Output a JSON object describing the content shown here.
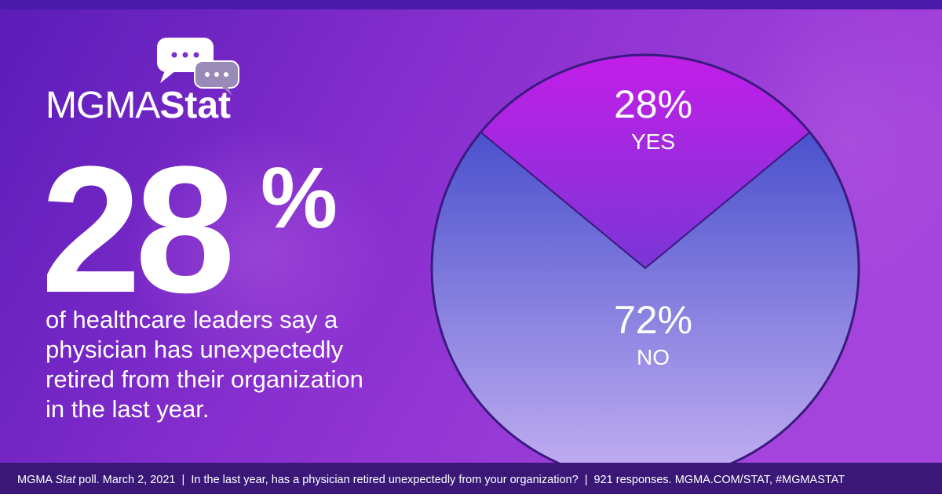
{
  "logo": {
    "light": "MGMA",
    "bold": "Stat"
  },
  "headline": {
    "number": "28",
    "symbol": "%"
  },
  "description": [
    "of healthcare leaders say a",
    "physician has unexpectedly",
    "retired from their organization",
    "in the last year."
  ],
  "footer": [
    "MGMA ",
    "Stat",
    " poll. March 2, 2021  |  In the last year, has a physician retired unexpectedly from your organization?  |  921 responses. MGMA.COM/STAT, #MGMASTAT"
  ],
  "chart_data": {
    "type": "pie",
    "categories": [
      "YES",
      "NO"
    ],
    "values": [
      28,
      72
    ],
    "value_labels": [
      "28%",
      "72%"
    ],
    "colors": [
      "#c21ee8",
      "#2f3cc4"
    ]
  }
}
